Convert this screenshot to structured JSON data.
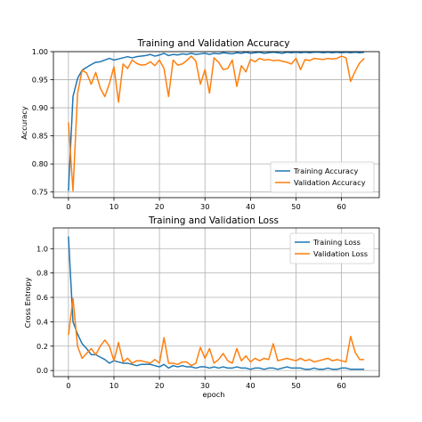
{
  "colors": {
    "training": "#1f77b4",
    "validation": "#ff7f0e",
    "grid": "#b0b0b0"
  },
  "chart_data": [
    {
      "type": "line",
      "title": "Training and Validation Accuracy",
      "xlabel": "",
      "ylabel": "Accuracy",
      "xlim": [
        -3.3,
        68.3
      ],
      "ylim": [
        0.74,
        1.0
      ],
      "xticks": [
        0,
        10,
        20,
        30,
        40,
        50,
        60
      ],
      "yticks": [
        0.75,
        0.8,
        0.85,
        0.9,
        0.95,
        1.0
      ],
      "ytick_labels": [
        "0.75",
        "0.80",
        "0.85",
        "0.90",
        "0.95",
        "1.00"
      ],
      "grid": true,
      "legend_position": "lower-right",
      "series": [
        {
          "name": "Training Accuracy",
          "color": "#1f77b4",
          "x": [
            0,
            1,
            2,
            3,
            4,
            5,
            6,
            7,
            8,
            9,
            10,
            11,
            12,
            13,
            14,
            15,
            16,
            17,
            18,
            19,
            20,
            21,
            22,
            23,
            24,
            25,
            26,
            27,
            28,
            29,
            30,
            31,
            32,
            33,
            34,
            35,
            36,
            37,
            38,
            39,
            40,
            41,
            42,
            43,
            44,
            45,
            46,
            47,
            48,
            49,
            50,
            51,
            52,
            53,
            54,
            55,
            56,
            57,
            58,
            59,
            60,
            61,
            62,
            63,
            64,
            65
          ],
          "y": [
            0.752,
            0.92,
            0.952,
            0.967,
            0.972,
            0.977,
            0.981,
            0.982,
            0.985,
            0.988,
            0.985,
            0.987,
            0.989,
            0.991,
            0.989,
            0.991,
            0.992,
            0.993,
            0.995,
            0.992,
            0.994,
            0.997,
            0.993,
            0.995,
            0.994,
            0.996,
            0.995,
            0.997,
            0.995,
            0.996,
            0.997,
            0.995,
            0.997,
            0.996,
            0.998,
            0.997,
            0.996,
            0.998,
            0.997,
            0.999,
            0.997,
            0.998,
            0.999,
            0.997,
            0.998,
            0.999,
            0.998,
            0.997,
            0.999,
            0.998,
            0.999,
            0.998,
            0.999,
            0.998,
            0.999,
            0.999,
            0.998,
            0.999,
            0.998,
            0.999,
            0.998,
            0.999,
            0.998,
            0.999,
            0.998,
            0.999
          ]
        },
        {
          "name": "Validation Accuracy",
          "color": "#ff7f0e",
          "x": [
            0,
            1,
            2,
            3,
            4,
            5,
            6,
            7,
            8,
            9,
            10,
            11,
            12,
            13,
            14,
            15,
            16,
            17,
            18,
            19,
            20,
            21,
            22,
            23,
            24,
            25,
            26,
            27,
            28,
            29,
            30,
            31,
            32,
            33,
            34,
            35,
            36,
            37,
            38,
            39,
            40,
            41,
            42,
            43,
            44,
            45,
            46,
            47,
            48,
            49,
            50,
            51,
            52,
            53,
            54,
            55,
            56,
            57,
            58,
            59,
            60,
            61,
            62,
            63,
            64,
            65
          ],
          "y": [
            0.874,
            0.752,
            0.925,
            0.967,
            0.962,
            0.942,
            0.963,
            0.935,
            0.92,
            0.943,
            0.973,
            0.91,
            0.978,
            0.97,
            0.985,
            0.979,
            0.976,
            0.977,
            0.982,
            0.975,
            0.985,
            0.97,
            0.92,
            0.985,
            0.976,
            0.978,
            0.984,
            0.992,
            0.983,
            0.942,
            0.968,
            0.926,
            0.989,
            0.981,
            0.968,
            0.97,
            0.985,
            0.938,
            0.975,
            0.964,
            0.986,
            0.982,
            0.988,
            0.985,
            0.986,
            0.984,
            0.985,
            0.983,
            0.981,
            0.978,
            0.988,
            0.968,
            0.986,
            0.984,
            0.988,
            0.987,
            0.986,
            0.988,
            0.987,
            0.988,
            0.992,
            0.989,
            0.947,
            0.965,
            0.98,
            0.988
          ]
        }
      ]
    },
    {
      "type": "line",
      "title": "Training and Validation Loss",
      "xlabel": "epoch",
      "ylabel": "Cross Entropy",
      "xlim": [
        -3.3,
        68.3
      ],
      "ylim": [
        -0.05,
        1.17
      ],
      "xticks": [
        0,
        10,
        20,
        30,
        40,
        50,
        60
      ],
      "yticks": [
        0.0,
        0.2,
        0.4,
        0.6,
        0.8,
        1.0
      ],
      "ytick_labels": [
        "0.0",
        "0.2",
        "0.4",
        "0.6",
        "0.8",
        "1.0"
      ],
      "grid": true,
      "legend_position": "upper-right",
      "series": [
        {
          "name": "Training Loss",
          "color": "#1f77b4",
          "x": [
            0,
            1,
            2,
            3,
            4,
            5,
            6,
            7,
            8,
            9,
            10,
            11,
            12,
            13,
            14,
            15,
            16,
            17,
            18,
            19,
            20,
            21,
            22,
            23,
            24,
            25,
            26,
            27,
            28,
            29,
            30,
            31,
            32,
            33,
            34,
            35,
            36,
            37,
            38,
            39,
            40,
            41,
            42,
            43,
            44,
            45,
            46,
            47,
            48,
            49,
            50,
            51,
            52,
            53,
            54,
            55,
            56,
            57,
            58,
            59,
            60,
            61,
            62,
            63,
            64,
            65
          ],
          "y": [
            1.1,
            0.4,
            0.3,
            0.22,
            0.18,
            0.13,
            0.13,
            0.11,
            0.09,
            0.06,
            0.08,
            0.07,
            0.06,
            0.06,
            0.05,
            0.04,
            0.05,
            0.05,
            0.05,
            0.04,
            0.03,
            0.05,
            0.02,
            0.04,
            0.03,
            0.04,
            0.03,
            0.03,
            0.02,
            0.03,
            0.03,
            0.02,
            0.03,
            0.02,
            0.03,
            0.02,
            0.02,
            0.03,
            0.02,
            0.02,
            0.01,
            0.02,
            0.02,
            0.01,
            0.02,
            0.02,
            0.01,
            0.02,
            0.03,
            0.02,
            0.02,
            0.02,
            0.01,
            0.01,
            0.02,
            0.01,
            0.01,
            0.02,
            0.01,
            0.01,
            0.02,
            0.02,
            0.01,
            0.01,
            0.01,
            0.01
          ]
        },
        {
          "name": "Validation Loss",
          "color": "#ff7f0e",
          "x": [
            0,
            1,
            2,
            3,
            4,
            5,
            6,
            7,
            8,
            9,
            10,
            11,
            12,
            13,
            14,
            15,
            16,
            17,
            18,
            19,
            20,
            21,
            22,
            23,
            24,
            25,
            26,
            27,
            28,
            29,
            30,
            31,
            32,
            33,
            34,
            35,
            36,
            37,
            38,
            39,
            40,
            41,
            42,
            43,
            44,
            45,
            46,
            47,
            48,
            49,
            50,
            51,
            52,
            53,
            54,
            55,
            56,
            57,
            58,
            59,
            60,
            61,
            62,
            63,
            64,
            65
          ],
          "y": [
            0.29,
            0.59,
            0.2,
            0.1,
            0.14,
            0.18,
            0.13,
            0.2,
            0.25,
            0.2,
            0.08,
            0.23,
            0.07,
            0.1,
            0.06,
            0.08,
            0.08,
            0.07,
            0.06,
            0.09,
            0.06,
            0.27,
            0.06,
            0.06,
            0.05,
            0.07,
            0.07,
            0.04,
            0.06,
            0.19,
            0.1,
            0.18,
            0.06,
            0.09,
            0.14,
            0.08,
            0.06,
            0.18,
            0.08,
            0.12,
            0.07,
            0.1,
            0.08,
            0.1,
            0.09,
            0.22,
            0.08,
            0.09,
            0.1,
            0.09,
            0.08,
            0.1,
            0.08,
            0.09,
            0.07,
            0.08,
            0.09,
            0.1,
            0.08,
            0.09,
            0.08,
            0.07,
            0.28,
            0.15,
            0.09,
            0.09
          ]
        }
      ]
    }
  ]
}
